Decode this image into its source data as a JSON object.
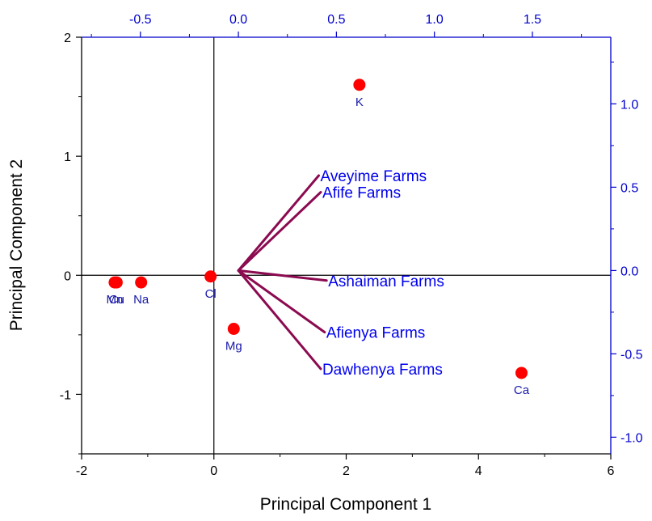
{
  "chart_data": {
    "type": "biplot",
    "xlabel": "Principal Component 1",
    "ylabel": "Principal Component 2",
    "xlim": [
      -2,
      6
    ],
    "ylim": [
      -1.5,
      2
    ],
    "xticks": [
      -2,
      0,
      2,
      4,
      6
    ],
    "xtick_labels": [
      "-2",
      "0",
      "2",
      "4",
      "6"
    ],
    "yticks": [
      -1,
      0,
      1,
      2
    ],
    "ytick_labels": [
      "-1",
      "0",
      "1",
      "2"
    ],
    "top_xlim": [
      -0.8,
      1.9
    ],
    "top_xticks": [
      -0.5,
      0.0,
      0.5,
      1.0,
      1.5
    ],
    "top_xtick_labels": [
      "-0.5",
      "0.0",
      "0.5",
      "1.0",
      "1.5"
    ],
    "right_ylim": [
      -1.1,
      1.4
    ],
    "right_yticks": [
      -1.0,
      -0.5,
      0.0,
      0.5,
      1.0
    ],
    "right_ytick_labels": [
      "-1.0",
      "-0.5",
      "0.0",
      "0.5",
      "1.0"
    ],
    "scores": [
      {
        "label": "K",
        "x": 2.2,
        "y": 1.6
      },
      {
        "label": "Ca",
        "x": 4.65,
        "y": -0.82
      },
      {
        "label": "Mg",
        "x": 0.3,
        "y": -0.45
      },
      {
        "label": "Cl",
        "x": -0.05,
        "y": -0.01
      },
      {
        "label": "Na",
        "x": -1.1,
        "y": -0.06
      },
      {
        "label": "Cu",
        "x": -1.47,
        "y": -0.06
      },
      {
        "label": "Mn",
        "x": -1.5,
        "y": -0.06
      }
    ],
    "loadings": [
      {
        "label": "Aveyime Farms",
        "x": 0.41,
        "y": 0.57
      },
      {
        "label": "Afife Farms",
        "x": 0.42,
        "y": 0.47
      },
      {
        "label": "Ashaiman Farms",
        "x": 0.45,
        "y": -0.06
      },
      {
        "label": "Afienya Farms",
        "x": 0.44,
        "y": -0.37
      },
      {
        "label": "Dawhenya Farms",
        "x": 0.42,
        "y": -0.59
      }
    ],
    "colors": {
      "points": "#ff0000",
      "vectors": "#8b0a50",
      "secondary_axis": "#0000cc",
      "point_labels": "#1a1aaa",
      "vector_labels": "#0000ee",
      "axes": "#000000"
    }
  }
}
